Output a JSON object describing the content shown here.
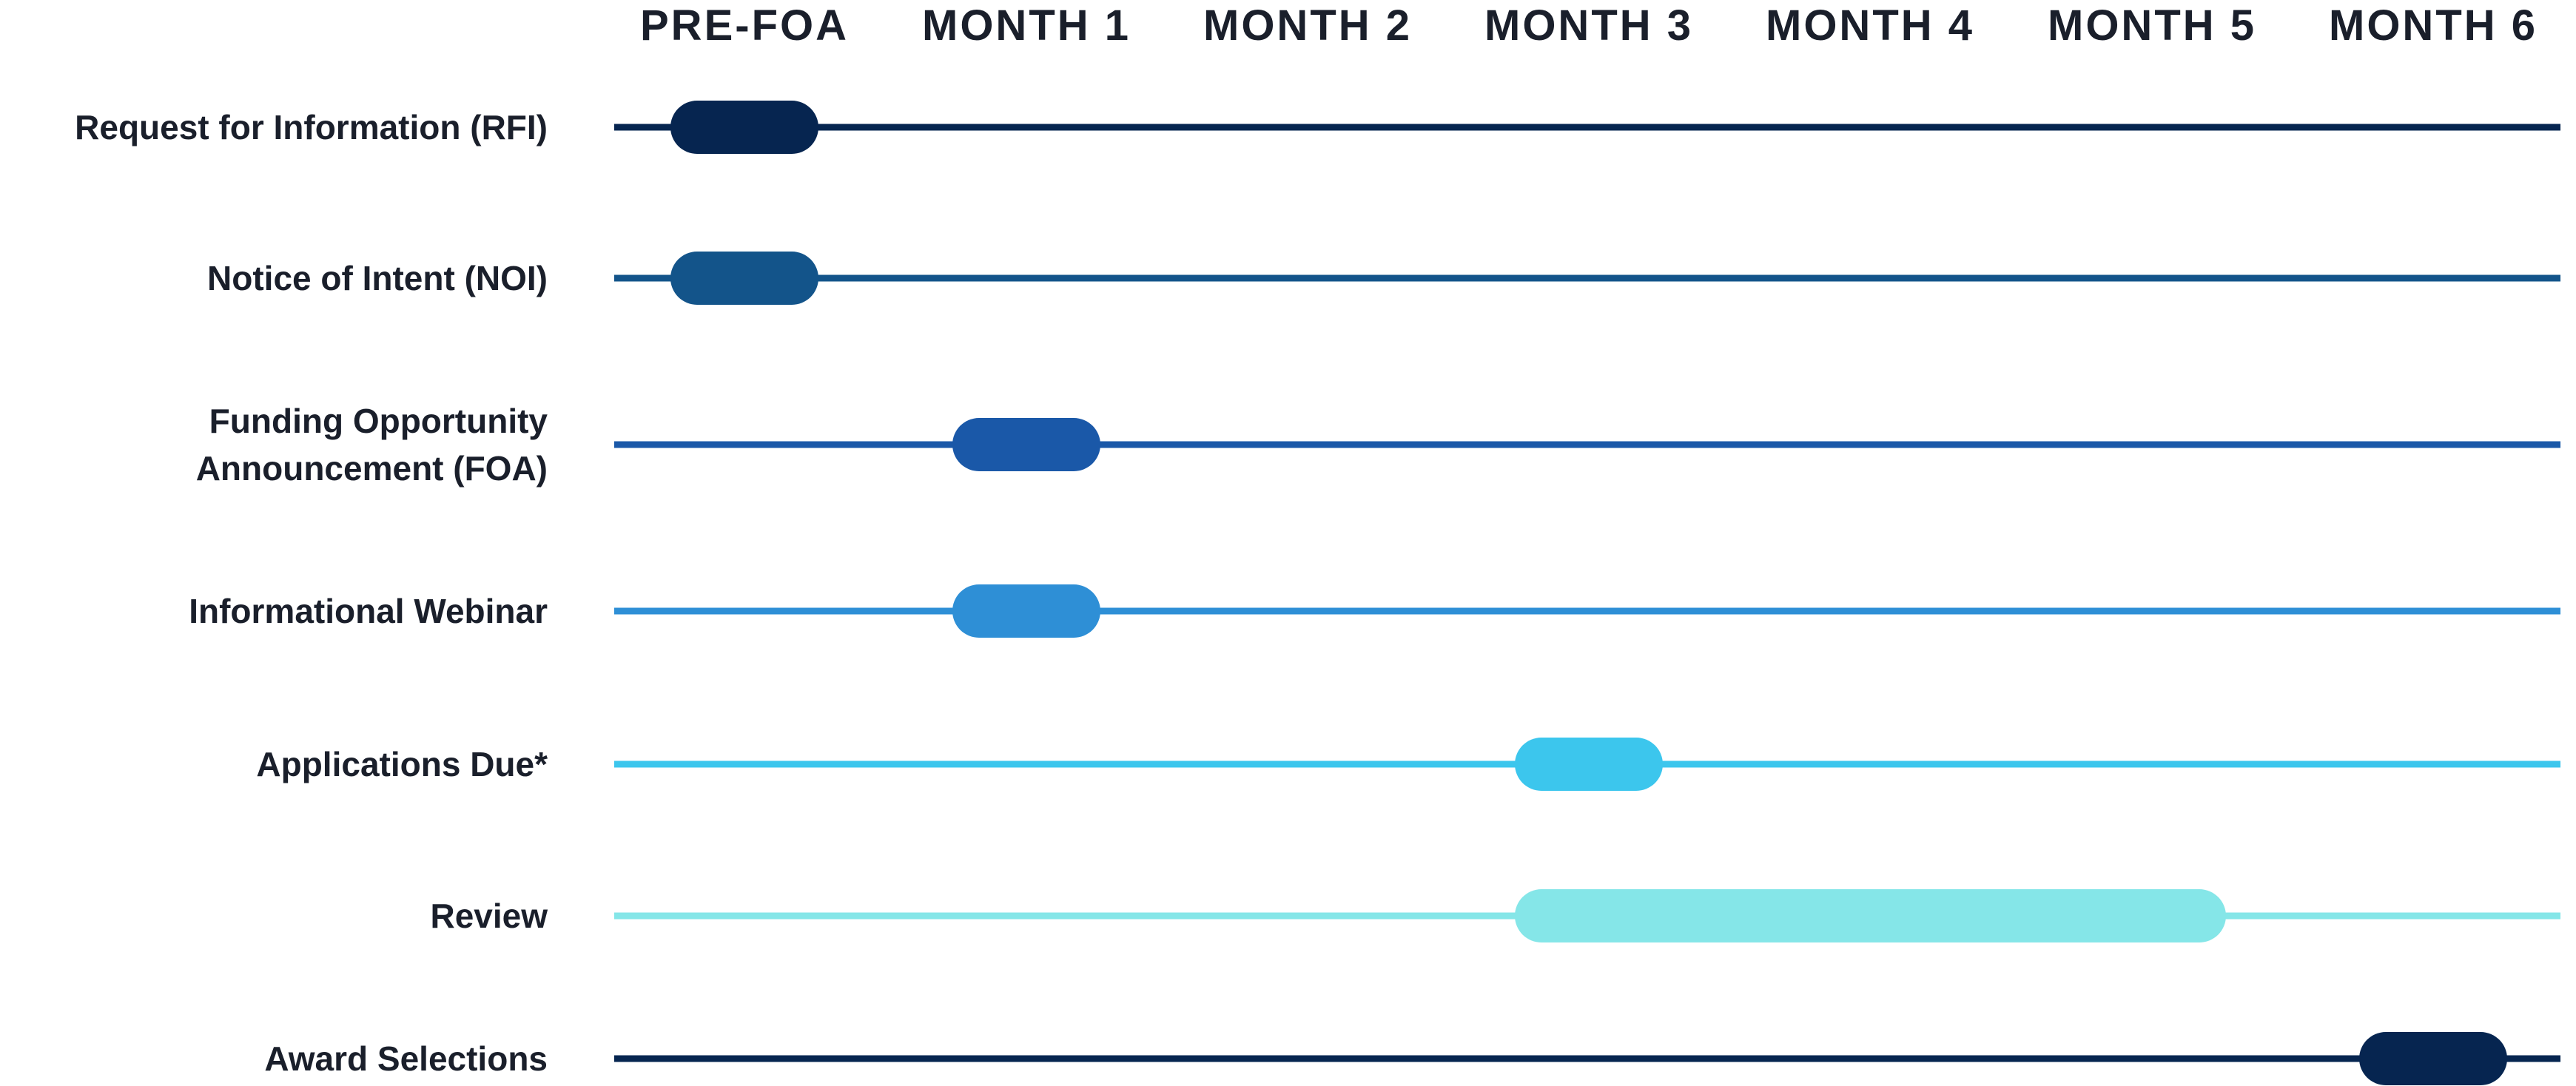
{
  "months": [
    "PRE-FOA",
    "MONTH 1",
    "MONTH 2",
    "MONTH 3",
    "MONTH 4",
    "MONTH 5",
    "MONTH 6"
  ],
  "rows": [
    {
      "name": "rfi",
      "label_lines": [
        "Request for Information (RFI)"
      ],
      "color": "#062550",
      "start": 0,
      "end": 0
    },
    {
      "name": "noi",
      "label_lines": [
        "Notice of Intent (NOI)"
      ],
      "color": "#13548a",
      "start": 0,
      "end": 0
    },
    {
      "name": "foa",
      "label_lines": [
        "Funding Opportunity",
        "Announcement (FOA)"
      ],
      "color": "#1a58a8",
      "start": 1,
      "end": 1
    },
    {
      "name": "webinar",
      "label_lines": [
        "Informational Webinar"
      ],
      "color": "#2e8fd6",
      "start": 1,
      "end": 1
    },
    {
      "name": "applications-due",
      "label_lines": [
        "Applications Due*"
      ],
      "color": "#3cc6ed",
      "start": 3,
      "end": 3
    },
    {
      "name": "review",
      "label_lines": [
        "Review"
      ],
      "color": "#85e6e8",
      "start": 3,
      "end": 5
    },
    {
      "name": "award-selections",
      "label_lines": [
        "Award Selections"
      ],
      "color": "#062550",
      "start": 6,
      "end": 6
    }
  ]
}
